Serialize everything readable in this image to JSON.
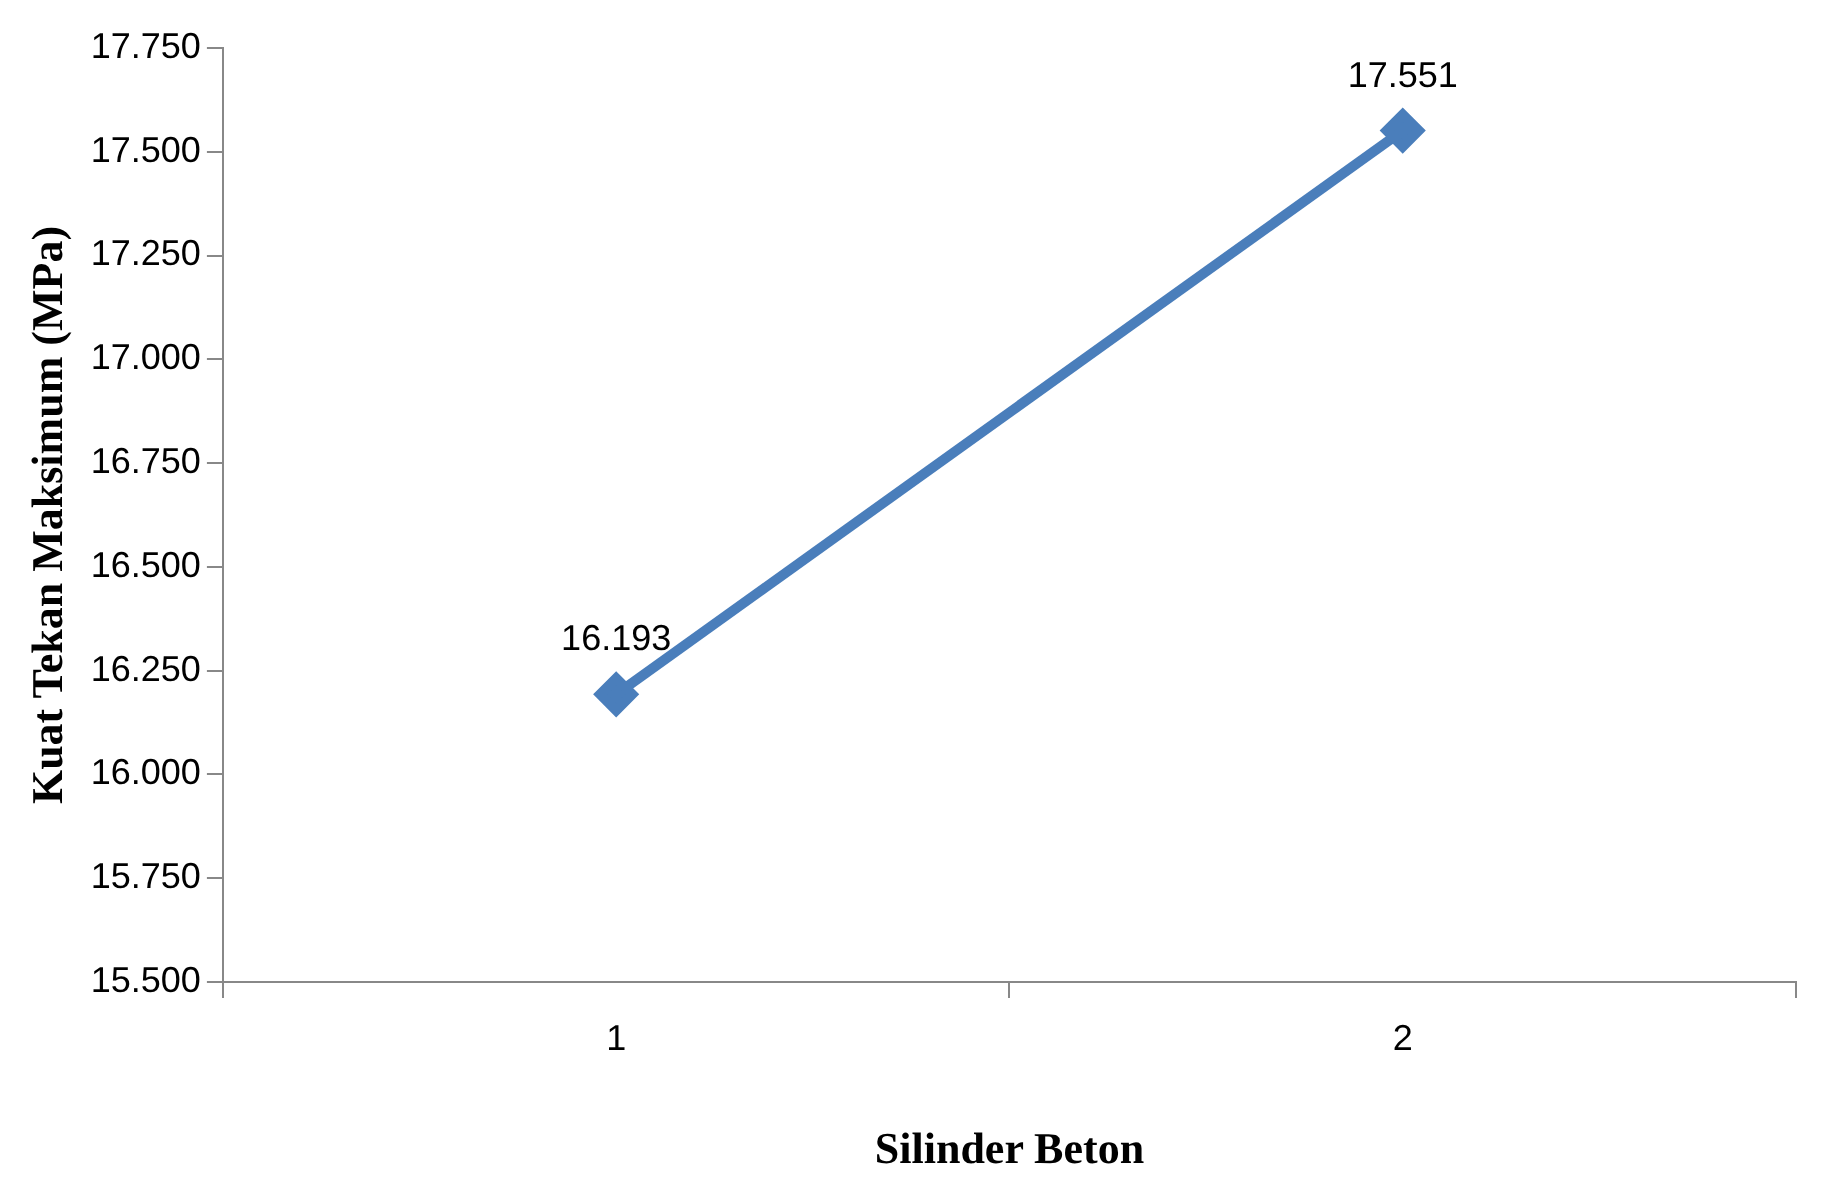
{
  "chart_data": {
    "type": "line",
    "xlabel": "Silinder Beton",
    "ylabel": "Kuat Tekan Maksimum (MPa)",
    "categories": [
      "1",
      "2"
    ],
    "series": [
      {
        "color": "#4a7ebb",
        "values": [
          16.193,
          17.551
        ]
      }
    ],
    "ylim": [
      15.5,
      17.75
    ],
    "yticks": [
      {
        "value": 15.5,
        "label": "15.500"
      },
      {
        "value": 15.75,
        "label": "15.750"
      },
      {
        "value": 16,
        "label": "16.000"
      },
      {
        "value": 16.25,
        "label": "16.250"
      },
      {
        "value": 16.5,
        "label": "16.500"
      },
      {
        "value": 16.75,
        "label": "16.750"
      },
      {
        "value": 17,
        "label": "17.000"
      },
      {
        "value": 17.25,
        "label": "17.250"
      },
      {
        "value": 17.5,
        "label": "17.500"
      },
      {
        "value": 17.75,
        "label": "17.750"
      }
    ],
    "data_labels": true,
    "grid": false,
    "legend": false,
    "marker": "diamond",
    "line_style": "solid"
  }
}
